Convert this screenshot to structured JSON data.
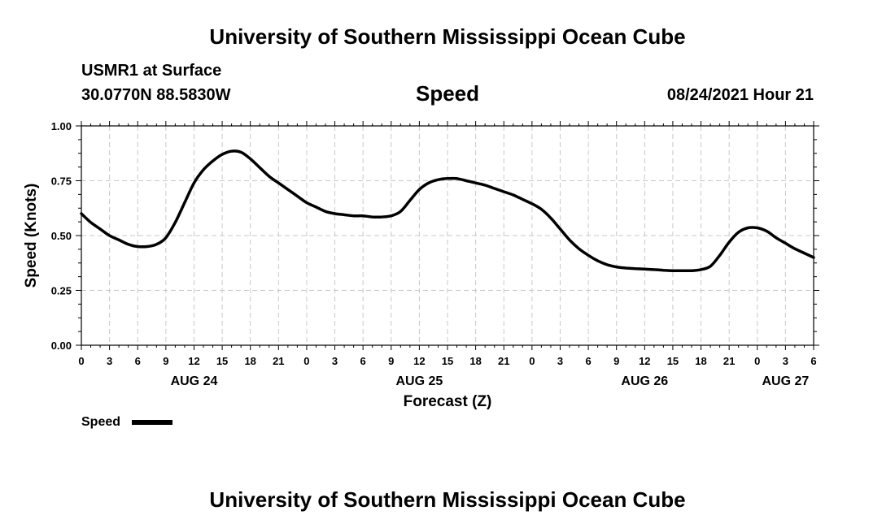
{
  "header": {
    "title_top": "University of Southern Mississippi Ocean Cube",
    "station": "USMR1 at Surface",
    "coords": "30.0770N  88.5830W",
    "variable": "Speed",
    "datetime": "08/24/2021 Hour 21",
    "title_bottom": "University of Southern Mississippi Ocean Cube"
  },
  "chart_data": {
    "type": "line",
    "xlabel": "Forecast (Z)",
    "ylabel": "Speed (Knots)",
    "x_hours_range": [
      0,
      78
    ],
    "ylim": [
      0,
      1
    ],
    "y_ticks": [
      "0.00",
      "0.25",
      "0.50",
      "0.75",
      "1.00"
    ],
    "x_tick_labels": [
      "0",
      "3",
      "6",
      "9",
      "12",
      "15",
      "18",
      "21",
      "0",
      "3",
      "6",
      "9",
      "12",
      "15",
      "18",
      "21",
      "0",
      "3",
      "6",
      "9",
      "12",
      "15",
      "18",
      "21",
      "0",
      "3",
      "6"
    ],
    "day_labels": [
      {
        "label": "AUG 24",
        "hour": 12
      },
      {
        "label": "AUG 25",
        "hour": 36
      },
      {
        "label": "AUG 26",
        "hour": 60
      },
      {
        "label": "AUG 27",
        "hour": 75
      }
    ],
    "grid": true,
    "line_color": "#000000",
    "series": [
      {
        "name": "Speed",
        "x": [
          0,
          1,
          2,
          3,
          4,
          5,
          6,
          7,
          8,
          9,
          10,
          11,
          12,
          13,
          14,
          15,
          16,
          17,
          18,
          19,
          20,
          21,
          22,
          23,
          24,
          25,
          26,
          27,
          28,
          29,
          30,
          31,
          32,
          33,
          34,
          35,
          36,
          37,
          38,
          39,
          40,
          41,
          42,
          43,
          44,
          45,
          46,
          47,
          48,
          49,
          50,
          51,
          52,
          53,
          54,
          55,
          56,
          57,
          58,
          59,
          60,
          61,
          62,
          63,
          64,
          65,
          66,
          67,
          68,
          69,
          70,
          71,
          72,
          73,
          74,
          75,
          76,
          77,
          78
        ],
        "values": [
          0.6,
          0.56,
          0.53,
          0.5,
          0.48,
          0.46,
          0.45,
          0.45,
          0.46,
          0.49,
          0.56,
          0.65,
          0.74,
          0.8,
          0.84,
          0.87,
          0.885,
          0.88,
          0.85,
          0.81,
          0.77,
          0.74,
          0.71,
          0.68,
          0.65,
          0.63,
          0.61,
          0.6,
          0.595,
          0.59,
          0.59,
          0.585,
          0.585,
          0.59,
          0.61,
          0.66,
          0.71,
          0.74,
          0.755,
          0.76,
          0.76,
          0.75,
          0.74,
          0.73,
          0.715,
          0.7,
          0.685,
          0.665,
          0.645,
          0.62,
          0.58,
          0.53,
          0.48,
          0.44,
          0.41,
          0.385,
          0.367,
          0.357,
          0.352,
          0.349,
          0.347,
          0.345,
          0.342,
          0.34,
          0.34,
          0.34,
          0.345,
          0.36,
          0.41,
          0.47,
          0.515,
          0.535,
          0.535,
          0.52,
          0.49,
          0.465,
          0.44,
          0.42,
          0.4
        ]
      }
    ],
    "legend": {
      "label": "Speed",
      "placement": "bottom-left"
    }
  }
}
